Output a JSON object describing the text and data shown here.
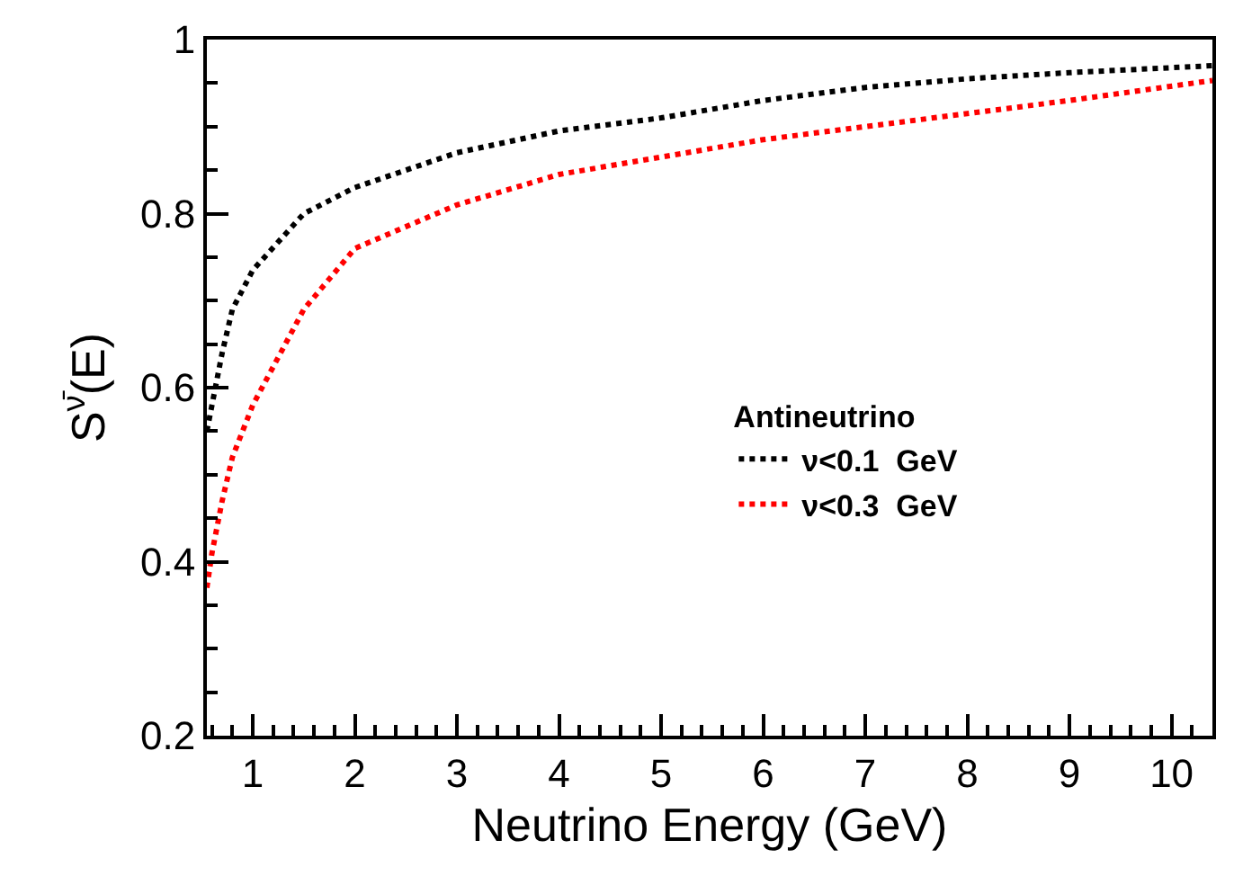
{
  "chart_data": {
    "type": "line",
    "xlabel": "Neutrino Energy (GeV)",
    "ylabel": "S$^{ν̄}$(E)",
    "legend_title": "Antineutrino",
    "legend": "right",
    "grid": false,
    "marker": "none",
    "line_style": "dotted",
    "xlim": [
      0.55,
      10.4
    ],
    "xticks": [
      1,
      2,
      3,
      4,
      5,
      6,
      7,
      8,
      9,
      10
    ],
    "ylim": [
      0.2,
      1
    ],
    "yticks": [
      0.2,
      0.4,
      0.6,
      0.8,
      1
    ],
    "x": [
      0.55,
      0.6,
      0.7,
      0.8,
      1,
      1.5,
      2,
      3,
      4,
      5,
      6,
      7,
      8,
      9,
      10.4
    ],
    "series": [
      {
        "name": "ν<0.1  GeV",
        "color": "#000000",
        "values": [
          0.55,
          0.58,
          0.64,
          0.69,
          0.735,
          0.8,
          0.83,
          0.87,
          0.895,
          0.91,
          0.93,
          0.945,
          0.955,
          0.962,
          0.97
        ]
      },
      {
        "name": "ν<0.3  GeV",
        "color": "#ff0000",
        "values": [
          0.37,
          0.41,
          0.47,
          0.52,
          0.58,
          0.69,
          0.76,
          0.81,
          0.845,
          0.865,
          0.885,
          0.9,
          0.915,
          0.93,
          0.953
        ]
      }
    ]
  }
}
